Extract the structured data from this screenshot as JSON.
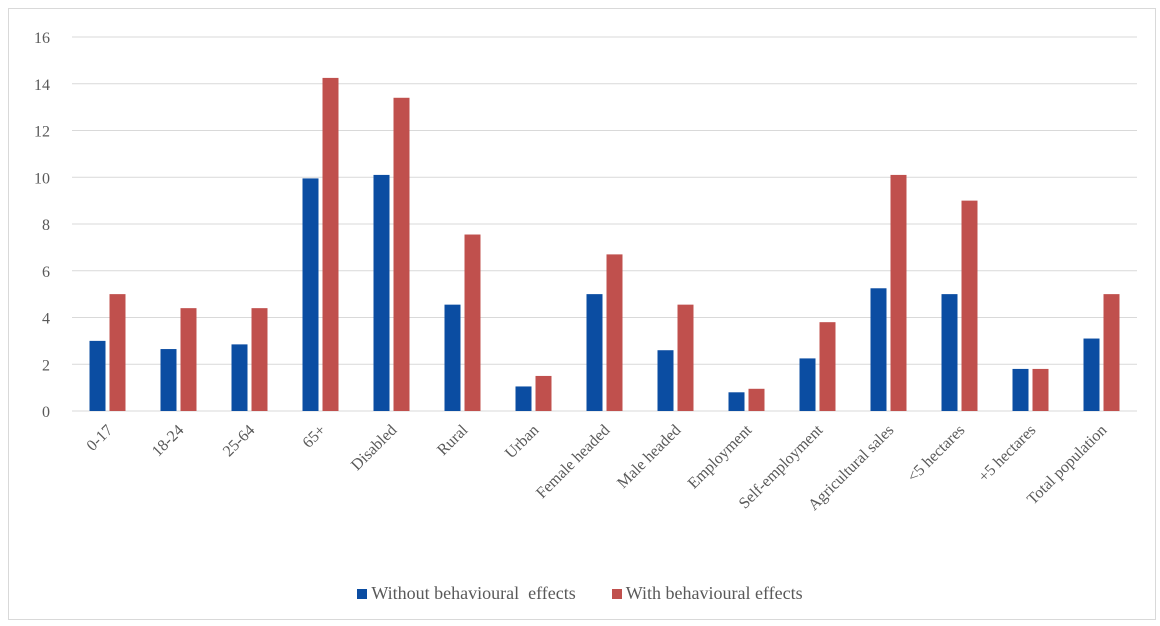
{
  "chart_data": {
    "type": "bar",
    "categories": [
      "0-17",
      "18-24",
      "25-64",
      "65+",
      "Disabled",
      "Rural",
      "Urban",
      "Female headed",
      "Male headed",
      "Employment",
      "Self-employment",
      "Agricultural sales",
      "<5 hectares",
      "+5 hectares",
      "Total population"
    ],
    "series": [
      {
        "name": "Without behavioural  effects",
        "color": "#0B4DA2",
        "values": [
          3.0,
          2.65,
          2.85,
          9.95,
          10.1,
          4.55,
          1.05,
          5.0,
          2.6,
          0.8,
          2.25,
          5.25,
          5.0,
          1.8,
          3.1
        ]
      },
      {
        "name": "With behavioural effects",
        "color": "#C0504D",
        "values": [
          5.0,
          4.4,
          4.4,
          14.25,
          13.4,
          7.55,
          1.5,
          6.7,
          4.55,
          0.95,
          3.8,
          10.1,
          9.0,
          1.8,
          5.0
        ]
      }
    ],
    "ylim": [
      0,
      16
    ],
    "yticks": [
      0,
      2,
      4,
      6,
      8,
      10,
      12,
      14,
      16
    ],
    "grid": true,
    "legend_position": "bottom",
    "title": "",
    "xlabel": "",
    "ylabel": ""
  }
}
